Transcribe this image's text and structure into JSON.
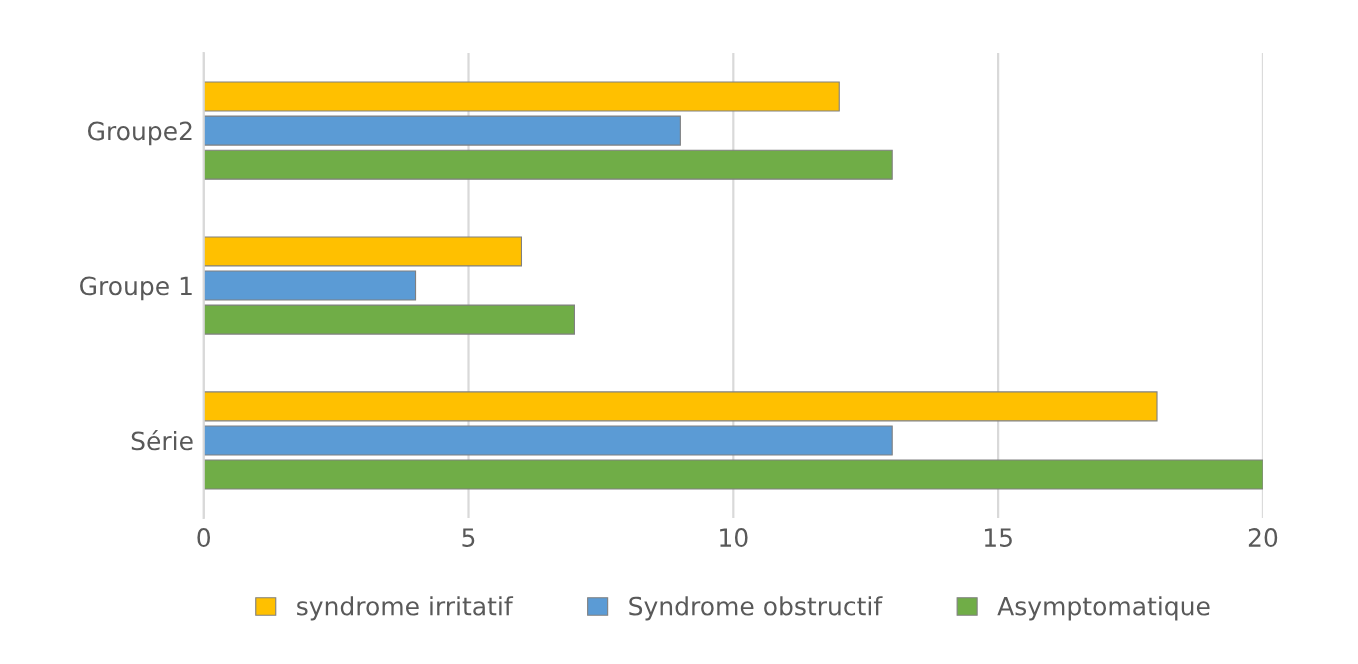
{
  "chart_data": {
    "type": "bar",
    "orientation": "horizontal",
    "categories": [
      "Groupe2",
      "Groupe 1",
      "Série"
    ],
    "series": [
      {
        "name": "syndrome irritatif",
        "color": "#ffc000",
        "values": [
          12,
          6,
          18
        ]
      },
      {
        "name": "Syndrome obstructif",
        "color": "#5b9bd5",
        "values": [
          9,
          4,
          13
        ]
      },
      {
        "name": "Asymptomatique",
        "color": "#70ad47",
        "values": [
          13,
          7,
          20
        ]
      }
    ],
    "xlim": [
      0,
      20
    ],
    "xticks": [
      0,
      5,
      10,
      15,
      20
    ],
    "grid": "x",
    "legend": "bottom"
  }
}
